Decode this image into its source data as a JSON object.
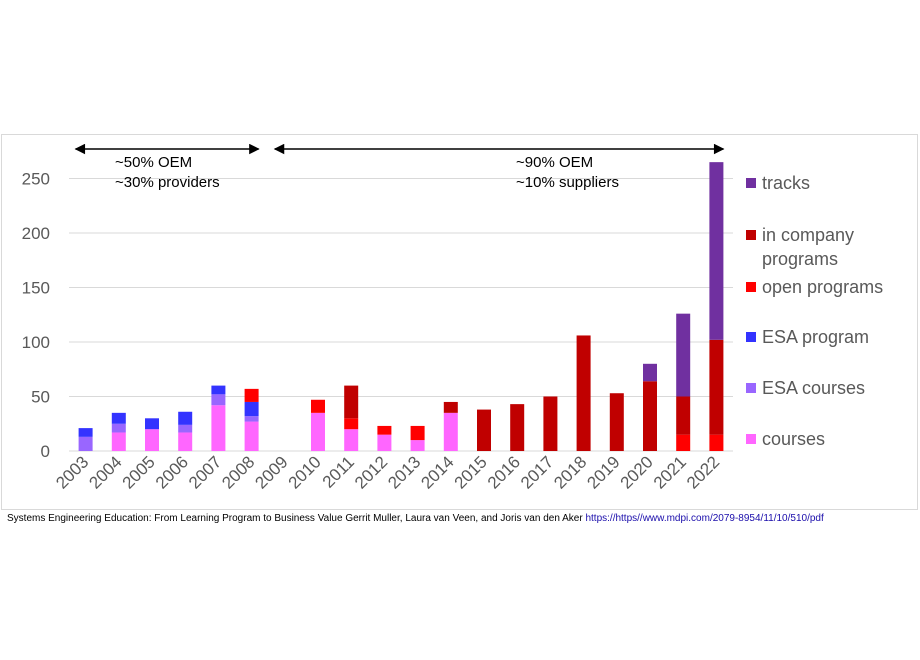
{
  "chart_data": {
    "type": "bar",
    "stacked": true,
    "categories": [
      "2003",
      "2004",
      "2005",
      "2006",
      "2007",
      "2008",
      "2009",
      "2010",
      "2011",
      "2012",
      "2013",
      "2014",
      "2015",
      "2016",
      "2017",
      "2018",
      "2019",
      "2020",
      "2021",
      "2022"
    ],
    "ylim": [
      0,
      275
    ],
    "yticks": [
      "0",
      "50",
      "100",
      "150",
      "200",
      "250"
    ],
    "grid": true,
    "legend_position": "right",
    "series": [
      {
        "name": "courses",
        "color": "#ff66ff",
        "values": [
          0,
          17,
          20,
          17,
          42,
          27,
          0,
          35,
          20,
          15,
          10,
          35,
          0,
          0,
          0,
          0,
          0,
          0,
          0,
          0
        ]
      },
      {
        "name": "ESA courses",
        "color": "#9966ff",
        "values": [
          13,
          8,
          0,
          7,
          10,
          5,
          0,
          0,
          0,
          0,
          0,
          0,
          0,
          0,
          0,
          0,
          0,
          0,
          0,
          0
        ]
      },
      {
        "name": "ESA program",
        "color": "#3333ff",
        "values": [
          8,
          10,
          10,
          12,
          8,
          13,
          0,
          0,
          0,
          0,
          0,
          0,
          0,
          0,
          0,
          0,
          0,
          0,
          0,
          0
        ]
      },
      {
        "name": "open programs",
        "color": "#ff0000",
        "values": [
          0,
          0,
          0,
          0,
          0,
          12,
          0,
          12,
          10,
          8,
          13,
          0,
          0,
          0,
          0,
          0,
          0,
          0,
          15,
          15
        ]
      },
      {
        "name": "in company programs",
        "color": "#c00000",
        "values": [
          0,
          0,
          0,
          0,
          0,
          0,
          0,
          0,
          30,
          0,
          0,
          10,
          38,
          43,
          50,
          106,
          53,
          64,
          35,
          87
        ]
      },
      {
        "name": "tracks",
        "color": "#7030a0",
        "values": [
          0,
          0,
          0,
          0,
          0,
          0,
          0,
          0,
          0,
          0,
          0,
          0,
          0,
          0,
          0,
          0,
          0,
          16,
          76,
          163
        ]
      }
    ],
    "legend_order": [
      "tracks",
      "in company programs",
      "open programs",
      "ESA program",
      "ESA courses",
      "courses"
    ],
    "annotations": [
      {
        "from": "2003",
        "to": "2008",
        "lines": [
          "~50% OEM",
          "~30% providers"
        ]
      },
      {
        "from": "2009",
        "to": "2022",
        "lines": [
          "~90% OEM",
          "~10% suppliers"
        ]
      }
    ]
  },
  "legend_labels": {
    "tracks": "tracks",
    "in_company_1": "in company",
    "in_company_2": "programs",
    "open_programs": "open programs",
    "esa_program": "ESA program",
    "esa_courses": "ESA courses",
    "courses": "courses"
  },
  "citation": {
    "text": "Systems Engineering Education: From Learning Program to Business Value Gerrit Muller, Laura van Veen, and Joris van den Aker ",
    "url": "https://https//www.mdpi.com/2079-8954/11/10/510/pdf"
  }
}
